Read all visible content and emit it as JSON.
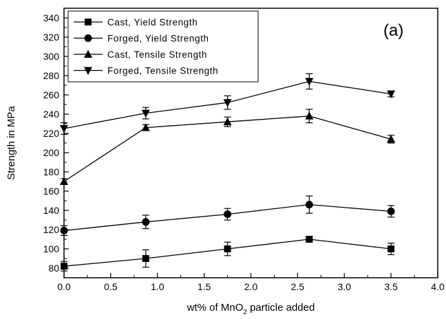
{
  "chart_data": {
    "type": "line",
    "annotation": "(a)",
    "xlabel": "wt% of MnO",
    "xlabel_subscript": "2",
    "xlabel_suffix": " particle added",
    "ylabel": "Strength in MPa",
    "xlim": [
      0,
      4
    ],
    "ylim": [
      70,
      350
    ],
    "x_ticks": [
      "0.0",
      "0.5",
      "1.0",
      "1.5",
      "2.0",
      "2.5",
      "3.0",
      "3.5",
      "4.0"
    ],
    "y_ticks": [
      "80",
      "100",
      "120",
      "140",
      "160",
      "180",
      "200",
      "220",
      "240",
      "260",
      "280",
      "300",
      "320",
      "340"
    ],
    "x": [
      0,
      0.875,
      1.75,
      2.625,
      3.5
    ],
    "legend_position": "top-left",
    "series": [
      {
        "name": "Cast, Yield Strength",
        "marker": "square",
        "values": [
          82,
          90,
          100,
          110,
          100
        ],
        "errors": [
          5,
          9,
          7,
          3,
          6
        ]
      },
      {
        "name": "Forged, Yield Strength",
        "marker": "circle",
        "values": [
          119,
          128,
          136,
          146,
          139
        ],
        "errors": [
          5,
          7,
          6,
          9,
          6
        ]
      },
      {
        "name": "Cast, Tensile Strength",
        "marker": "triangle-up",
        "values": [
          170,
          226,
          232,
          238,
          214
        ],
        "errors": [
          3,
          3,
          5,
          7,
          4
        ]
      },
      {
        "name": "Forged, Tensile Strength",
        "marker": "triangle-down",
        "values": [
          225,
          241,
          252,
          274,
          261
        ],
        "errors": [
          6,
          6,
          7,
          8,
          3
        ]
      }
    ]
  }
}
